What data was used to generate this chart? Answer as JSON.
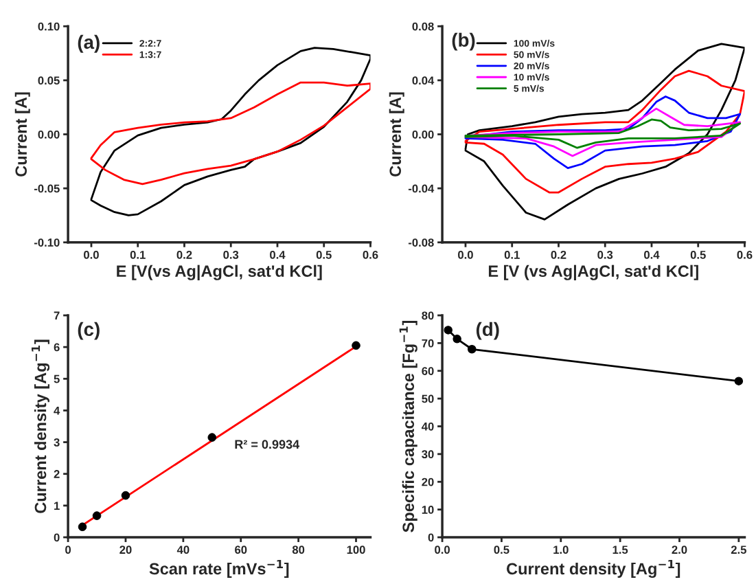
{
  "chart_data": [
    {
      "type": "line",
      "xlabel": "E [V(vs Ag|AgCl, sat'd KCl]",
      "ylabel": "Current [A]",
      "xlim": [
        -0.05,
        0.6
      ],
      "ylim": [
        -0.1,
        0.1
      ],
      "xticks": [
        {
          "value": 0,
          "label": "0.0"
        },
        0.1,
        0.2,
        0.3,
        0.4,
        0.5,
        0.6
      ],
      "yticks": [
        {
          "value": -0.1,
          "label": "-0.10"
        },
        {
          "value": -0.05,
          "label": "-0.05"
        },
        {
          "value": 0,
          "label": "0.00"
        },
        0.05,
        {
          "value": 0.1,
          "label": "0.10"
        }
      ],
      "legend": "top left",
      "annotations": [
        "(a)"
      ],
      "series": [
        {
          "name": "2:2:7",
          "color": "#000000",
          "x": [
            0.0,
            0.02,
            0.05,
            0.1,
            0.15,
            0.2,
            0.25,
            0.28,
            0.3,
            0.33,
            0.36,
            0.4,
            0.45,
            0.48,
            0.52,
            0.56,
            0.6,
            0.6,
            0.58,
            0.55,
            0.5,
            0.45,
            0.4,
            0.35,
            0.33,
            0.3,
            0.25,
            0.2,
            0.15,
            0.1,
            0.08,
            0.05,
            0.02,
            0.0
          ],
          "values": [
            -0.06,
            -0.035,
            -0.015,
            -0.001,
            0.006,
            0.009,
            0.011,
            0.014,
            0.022,
            0.037,
            0.05,
            0.064,
            0.077,
            0.08,
            0.079,
            0.076,
            0.073,
            0.07,
            0.05,
            0.03,
            0.007,
            -0.008,
            -0.016,
            -0.023,
            -0.03,
            -0.033,
            -0.039,
            -0.047,
            -0.062,
            -0.074,
            -0.075,
            -0.072,
            -0.066,
            -0.061
          ]
        },
        {
          "name": "1:3:7",
          "color": "#ff0000",
          "x": [
            0.0,
            0.02,
            0.05,
            0.1,
            0.15,
            0.2,
            0.25,
            0.3,
            0.35,
            0.4,
            0.45,
            0.5,
            0.55,
            0.6,
            0.6,
            0.55,
            0.5,
            0.45,
            0.4,
            0.35,
            0.3,
            0.25,
            0.2,
            0.15,
            0.11,
            0.07,
            0.03,
            0.0
          ],
          "values": [
            -0.022,
            -0.01,
            0.002,
            0.006,
            0.009,
            0.011,
            0.012,
            0.015,
            0.025,
            0.037,
            0.048,
            0.048,
            0.045,
            0.047,
            0.042,
            0.025,
            0.008,
            -0.005,
            -0.016,
            -0.023,
            -0.029,
            -0.032,
            -0.036,
            -0.042,
            -0.046,
            -0.042,
            -0.033,
            -0.023
          ]
        }
      ]
    },
    {
      "type": "line",
      "xlabel": "E [V (vs Ag|AgCl, sat'd KCl]",
      "ylabel": "Current [A]",
      "xlim": [
        -0.05,
        0.6
      ],
      "ylim": [
        -0.08,
        0.08
      ],
      "xticks": [
        {
          "value": 0,
          "label": "0.0"
        },
        0.1,
        0.2,
        0.3,
        0.4,
        0.5,
        0.6
      ],
      "yticks": [
        {
          "value": -0.08,
          "label": "-0.08"
        },
        {
          "value": -0.04,
          "label": "-0.04"
        },
        {
          "value": 0,
          "label": "0.00"
        },
        0.04,
        0.08
      ],
      "legend": "top left",
      "annotations": [
        "(b)"
      ],
      "series": [
        {
          "name": "100 mV/s",
          "color": "#000000",
          "x": [
            0.0,
            0.005,
            0.03,
            0.1,
            0.15,
            0.2,
            0.25,
            0.3,
            0.35,
            0.38,
            0.42,
            0.45,
            0.5,
            0.55,
            0.6,
            0.58,
            0.55,
            0.52,
            0.48,
            0.43,
            0.38,
            0.33,
            0.28,
            0.22,
            0.17,
            0.13,
            0.08,
            0.04,
            0.0
          ],
          "values": [
            -0.011,
            0.0,
            0.003,
            0.006,
            0.009,
            0.013,
            0.015,
            0.016,
            0.018,
            0.025,
            0.038,
            0.048,
            0.062,
            0.067,
            0.064,
            0.04,
            0.018,
            0.0,
            -0.014,
            -0.024,
            -0.029,
            -0.033,
            -0.04,
            -0.052,
            -0.063,
            -0.058,
            -0.038,
            -0.02,
            -0.012
          ]
        },
        {
          "name": "50 mV/s",
          "color": "#ff0000",
          "x": [
            0.0,
            0.03,
            0.1,
            0.2,
            0.3,
            0.35,
            0.38,
            0.42,
            0.45,
            0.48,
            0.52,
            0.55,
            0.6,
            0.59,
            0.56,
            0.5,
            0.45,
            0.4,
            0.35,
            0.3,
            0.25,
            0.2,
            0.18,
            0.13,
            0.08,
            0.04,
            0.0
          ],
          "values": [
            -0.005,
            0.002,
            0.004,
            0.007,
            0.009,
            0.009,
            0.018,
            0.033,
            0.043,
            0.047,
            0.043,
            0.036,
            0.032,
            0.015,
            0.002,
            -0.013,
            -0.018,
            -0.021,
            -0.022,
            -0.024,
            -0.033,
            -0.043,
            -0.043,
            -0.033,
            -0.015,
            -0.007,
            -0.006
          ]
        },
        {
          "name": "20 mV/s",
          "color": "#0000ff",
          "x": [
            0.0,
            0.1,
            0.2,
            0.3,
            0.35,
            0.38,
            0.41,
            0.43,
            0.45,
            0.48,
            0.52,
            0.56,
            0.59,
            0.57,
            0.52,
            0.45,
            0.38,
            0.3,
            0.25,
            0.22,
            0.19,
            0.15,
            0.08,
            0.0
          ],
          "values": [
            -0.002,
            0.002,
            0.003,
            0.003,
            0.004,
            0.012,
            0.024,
            0.028,
            0.025,
            0.016,
            0.012,
            0.012,
            0.015,
            0.002,
            -0.005,
            -0.008,
            -0.009,
            -0.012,
            -0.022,
            -0.025,
            -0.018,
            -0.007,
            -0.004,
            -0.003
          ]
        },
        {
          "name": "10 mV/s",
          "color": "#ff00ff",
          "x": [
            0.0,
            0.1,
            0.2,
            0.33,
            0.37,
            0.41,
            0.44,
            0.47,
            0.52,
            0.59,
            0.55,
            0.45,
            0.35,
            0.28,
            0.23,
            0.19,
            0.13,
            0.0
          ],
          "values": [
            -0.001,
            0.001,
            0.002,
            0.002,
            0.01,
            0.019,
            0.013,
            0.007,
            0.006,
            0.009,
            -0.002,
            -0.004,
            -0.006,
            -0.008,
            -0.016,
            -0.009,
            -0.003,
            -0.002
          ]
        },
        {
          "name": "5 mV/s",
          "color": "#008000",
          "x": [
            0.0,
            0.2,
            0.33,
            0.37,
            0.4,
            0.42,
            0.44,
            0.48,
            0.55,
            0.59,
            0.55,
            0.45,
            0.35,
            0.28,
            0.24,
            0.2,
            0.1,
            0.0
          ],
          "values": [
            -0.001,
            0.0,
            0.001,
            0.006,
            0.011,
            0.01,
            0.005,
            0.003,
            0.004,
            0.008,
            -0.001,
            -0.003,
            -0.003,
            -0.006,
            -0.01,
            -0.004,
            -0.001,
            -0.002
          ]
        }
      ]
    },
    {
      "type": "scatter",
      "xlabel": "Scan rate [mVs$^{−1}$]",
      "ylabel": "Current density [Ag$^{−1}$]",
      "xlim": [
        0,
        105
      ],
      "ylim": [
        0,
        7
      ],
      "xticks": [
        0,
        20,
        40,
        60,
        80,
        100
      ],
      "yticks": [
        0,
        1,
        2,
        3,
        4,
        5,
        6,
        7
      ],
      "annotations": [
        "(c)",
        "R² = 0.9934"
      ],
      "series": [
        {
          "type": "line",
          "color": "#ff0000",
          "x": [
            5,
            100
          ],
          "values": [
            0.38,
            6.02
          ]
        },
        {
          "type": "scatter",
          "color": "#000000",
          "marker": "circle",
          "x": [
            5,
            10,
            20,
            50,
            100
          ],
          "values": [
            0.33,
            0.68,
            1.32,
            3.15,
            6.05
          ]
        }
      ]
    },
    {
      "type": "line",
      "xlabel": "Current density [Ag$^{−1}$]",
      "ylabel": "Specific capacitance [Fg$^{−1}$]",
      "xlim": [
        0,
        2.55
      ],
      "ylim": [
        0,
        80
      ],
      "xticks": [
        {
          "value": 0,
          "label": "0.0"
        },
        0.5,
        {
          "value": 1,
          "label": "1.0"
        },
        1.5,
        {
          "value": 2,
          "label": "2.0"
        },
        2.5
      ],
      "yticks": [
        0,
        10,
        20,
        30,
        40,
        50,
        60,
        70,
        80
      ],
      "annotations": [
        "(d)"
      ],
      "series": [
        {
          "color": "#000000",
          "marker": "circle",
          "x": [
            0.05,
            0.125,
            0.25,
            2.5
          ],
          "values": [
            74.7,
            71.5,
            67.8,
            56.3
          ]
        }
      ]
    }
  ]
}
